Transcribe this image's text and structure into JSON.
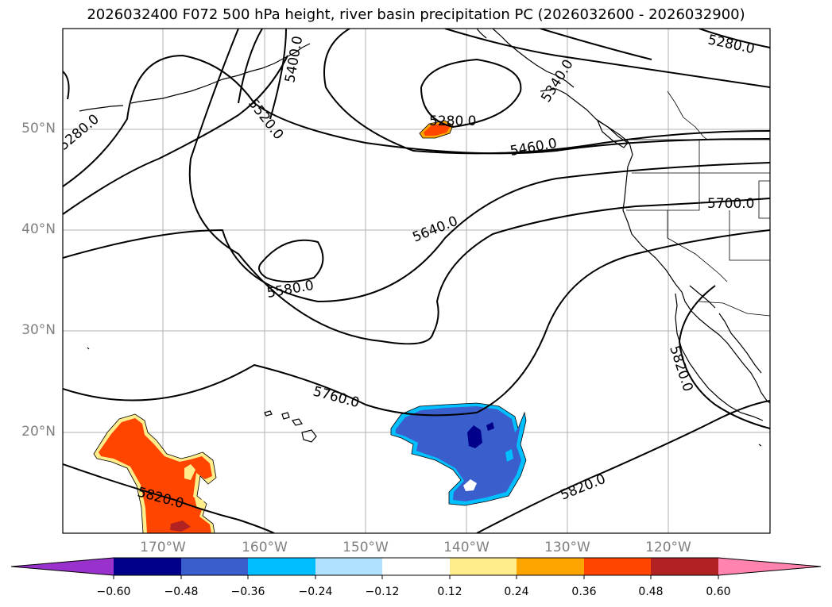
{
  "title": "2026032400 F072 500 hPa height, river basin precipitation PC (2026032600 - 2026032900)",
  "lat_labels": [
    "50°N",
    "40°N",
    "30°N",
    "20°N"
  ],
  "lon_labels": [
    "170°W",
    "160°W",
    "150°W",
    "140°W",
    "130°W",
    "120°W"
  ],
  "contour_labels": [
    "5280.0",
    "5400.0",
    "5520.0",
    "5280.0",
    "5460.0",
    "5340.0",
    "5700.0",
    "5640.0",
    "5580.0",
    "5760.0",
    "5820.0",
    "5820.0",
    "5820.0",
    "5280.0"
  ],
  "colorbar": {
    "tick_labels": [
      "−0.60",
      "−0.48",
      "−0.36",
      "−0.24",
      "−0.12",
      "0.12",
      "0.24",
      "0.36",
      "0.48",
      "0.60"
    ],
    "colors": [
      "#9932CC",
      "#00008B",
      "#3A5FCD",
      "#00BFFF",
      "#B0E2FF",
      "#FFFFFF",
      "#FFEC8B",
      "#FFA500",
      "#FF4500",
      "#B22222",
      "#FF83AE"
    ]
  },
  "precip_colors": {
    "negative_core": "#00008B",
    "negative_main": "#3A5FCD",
    "negative_edge": "#00BFFF",
    "positive_main": "#FF4500",
    "positive_edge": "#FFA500",
    "positive_outer": "#FFEC8B",
    "positive_core": "#B22222"
  }
}
